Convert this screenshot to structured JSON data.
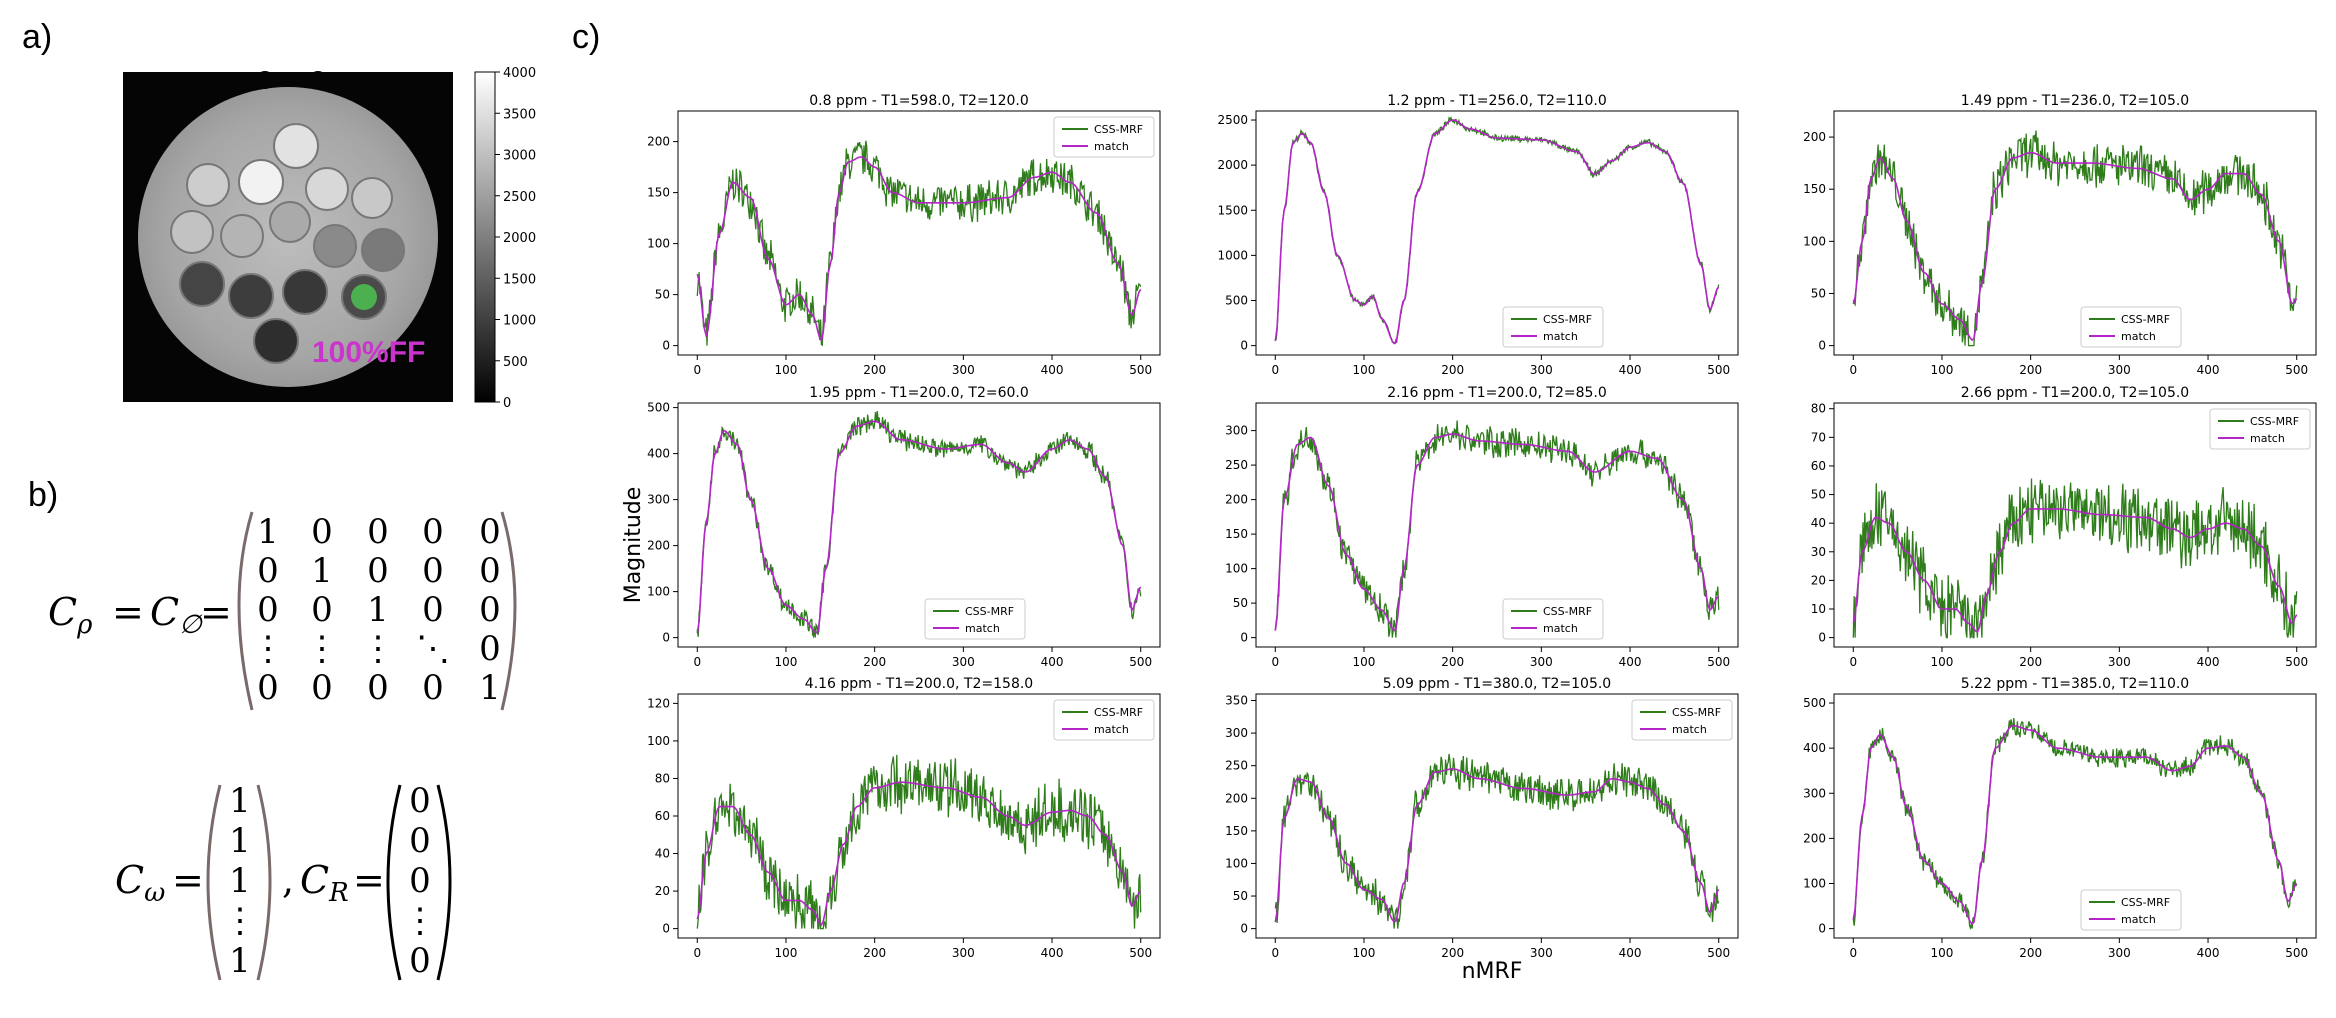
{
  "panels": {
    "a": "a)",
    "b": "b)",
    "c": "c)"
  },
  "phantom": {
    "label": "100%FF",
    "label_color": "#cc33cc",
    "marker_color": "#4caf50",
    "colorbar_ticks": [
      "4000",
      "3500",
      "3000",
      "2500",
      "2000",
      "1500",
      "1000",
      "500",
      "0"
    ]
  },
  "equations": {
    "c_rho": "C",
    "rho_sub": "ρ",
    "equals": "=",
    "c_phi": "C",
    "phi_sub": "∅",
    "identity_rows": [
      [
        "1",
        "0",
        "0",
        "0",
        "0"
      ],
      [
        "0",
        "1",
        "0",
        "0",
        "0"
      ],
      [
        "0",
        "0",
        "1",
        "0",
        "0"
      ],
      [
        "⋮",
        "⋮",
        "⋮",
        "⋱",
        "0"
      ],
      [
        "0",
        "0",
        "0",
        "0",
        "1"
      ]
    ],
    "c_omega": "C",
    "omega_sub": "ω",
    "omega_vec": [
      "1",
      "1",
      "1",
      "⋮",
      "1"
    ],
    "comma": ",",
    "c_r": "C",
    "r_sub": "R",
    "r_vec": [
      "0",
      "0",
      "0",
      "⋮",
      "0"
    ]
  },
  "axes_labels": {
    "ylabel": "Magnitude",
    "xlabel": "nMRF"
  },
  "legend": {
    "series1": "CSS-MRF",
    "series2": "match"
  },
  "colors": {
    "series1": "#2e7d1a",
    "series2": "#b325c6"
  },
  "chart_data": [
    {
      "type": "line",
      "title": "0.8 ppm - T1=598.0, T2=120.0",
      "xlim": [
        0,
        500
      ],
      "ylim": [
        0,
        230
      ],
      "xticks": [
        "0",
        "100",
        "200",
        "300",
        "400",
        "500"
      ],
      "yticks": [
        "0",
        "50",
        "100",
        "150",
        "200"
      ],
      "legend_pos": "top-right",
      "noise": 22,
      "series": [
        {
          "name": "CSS-MRF"
        },
        {
          "name": "match",
          "x": [
            0,
            10,
            25,
            40,
            60,
            80,
            100,
            115,
            130,
            140,
            150,
            160,
            170,
            185,
            200,
            220,
            250,
            300,
            350,
            380,
            400,
            420,
            450,
            475,
            490,
            500
          ],
          "values": [
            70,
            10,
            110,
            160,
            145,
            85,
            40,
            50,
            30,
            5,
            80,
            150,
            180,
            185,
            175,
            150,
            140,
            140,
            145,
            165,
            170,
            160,
            130,
            80,
            30,
            55
          ]
        }
      ]
    },
    {
      "type": "line",
      "title": "1.2 ppm - T1=256.0, T2=110.0",
      "xlim": [
        0,
        500
      ],
      "ylim": [
        0,
        2600
      ],
      "xticks": [
        "0",
        "100",
        "200",
        "300",
        "400",
        "500"
      ],
      "yticks": [
        "0",
        "500",
        "1000",
        "1500",
        "2000",
        "2500"
      ],
      "legend_pos": "bottom-center",
      "noise": 40,
      "series": [
        {
          "name": "CSS-MRF"
        },
        {
          "name": "match",
          "x": [
            0,
            10,
            20,
            30,
            40,
            55,
            70,
            90,
            100,
            110,
            120,
            135,
            145,
            160,
            180,
            200,
            220,
            250,
            300,
            340,
            360,
            380,
            400,
            420,
            440,
            460,
            480,
            490,
            500
          ],
          "values": [
            50,
            1500,
            2250,
            2350,
            2250,
            1700,
            1000,
            500,
            450,
            550,
            300,
            20,
            500,
            1700,
            2350,
            2500,
            2400,
            2300,
            2280,
            2150,
            1900,
            2050,
            2200,
            2250,
            2150,
            1800,
            900,
            400,
            650
          ]
        }
      ]
    },
    {
      "type": "line",
      "title": "1.49 ppm - T1=236.0, T2=105.0",
      "xlim": [
        0,
        500
      ],
      "ylim": [
        0,
        225
      ],
      "xticks": [
        "0",
        "100",
        "200",
        "300",
        "400",
        "500"
      ],
      "yticks": [
        "0",
        "50",
        "100",
        "150",
        "200"
      ],
      "legend_pos": "bottom-center",
      "noise": 25,
      "series": [
        {
          "name": "CSS-MRF"
        },
        {
          "name": "match",
          "x": [
            0,
            10,
            20,
            30,
            45,
            60,
            80,
            100,
            120,
            135,
            145,
            160,
            180,
            200,
            230,
            270,
            320,
            360,
            380,
            400,
            420,
            440,
            460,
            480,
            495,
            500
          ],
          "values": [
            40,
            100,
            160,
            180,
            160,
            120,
            70,
            40,
            25,
            5,
            60,
            150,
            180,
            185,
            175,
            175,
            170,
            160,
            140,
            150,
            165,
            165,
            145,
            100,
            40,
            45
          ]
        }
      ]
    },
    {
      "type": "line",
      "title": "1.95 ppm - T1=200.0, T2=60.0",
      "xlim": [
        0,
        500
      ],
      "ylim": [
        0,
        510
      ],
      "xticks": [
        "0",
        "100",
        "200",
        "300",
        "400",
        "500"
      ],
      "yticks": [
        "0",
        "100",
        "200",
        "300",
        "400",
        "500"
      ],
      "legend_pos": "bottom-center",
      "noise": 25,
      "series": [
        {
          "name": "CSS-MRF"
        },
        {
          "name": "match",
          "x": [
            0,
            10,
            20,
            30,
            45,
            60,
            80,
            100,
            120,
            135,
            145,
            160,
            180,
            200,
            230,
            280,
            320,
            350,
            370,
            400,
            420,
            440,
            460,
            480,
            490,
            500
          ],
          "values": [
            10,
            250,
            400,
            450,
            420,
            300,
            150,
            70,
            40,
            10,
            150,
            400,
            460,
            470,
            430,
            410,
            420,
            380,
            360,
            410,
            430,
            410,
            350,
            200,
            60,
            110
          ]
        }
      ]
    },
    {
      "type": "line",
      "title": "2.16 ppm - T1=200.0, T2=85.0",
      "xlim": [
        0,
        500
      ],
      "ylim": [
        0,
        340
      ],
      "xticks": [
        "0",
        "100",
        "200",
        "300",
        "400",
        "500"
      ],
      "yticks": [
        "0",
        "50",
        "100",
        "150",
        "200",
        "250",
        "300"
      ],
      "legend_pos": "bottom-center",
      "noise": 25,
      "series": [
        {
          "name": "CSS-MRF"
        },
        {
          "name": "match",
          "x": [
            0,
            10,
            25,
            40,
            60,
            80,
            100,
            120,
            135,
            145,
            160,
            180,
            200,
            230,
            280,
            330,
            360,
            400,
            430,
            460,
            480,
            490,
            500
          ],
          "values": [
            10,
            200,
            280,
            290,
            220,
            120,
            70,
            40,
            10,
            100,
            250,
            290,
            295,
            285,
            280,
            270,
            240,
            270,
            260,
            200,
            100,
            40,
            60
          ]
        }
      ]
    },
    {
      "type": "line",
      "title": "2.66 ppm - T1=200.0, T2=105.0",
      "xlim": [
        0,
        500
      ],
      "ylim": [
        0,
        82
      ],
      "xticks": [
        "0",
        "100",
        "200",
        "300",
        "400",
        "500"
      ],
      "yticks": [
        "0",
        "10",
        "20",
        "30",
        "40",
        "50",
        "60",
        "70",
        "80"
      ],
      "legend_pos": "top-right",
      "noise": 14,
      "series": [
        {
          "name": "CSS-MRF"
        },
        {
          "name": "match",
          "x": [
            0,
            10,
            25,
            40,
            60,
            80,
            100,
            115,
            130,
            140,
            150,
            165,
            180,
            200,
            230,
            280,
            330,
            360,
            380,
            400,
            420,
            440,
            460,
            480,
            495,
            500
          ],
          "values": [
            5,
            30,
            42,
            40,
            30,
            20,
            10,
            10,
            5,
            2,
            15,
            30,
            40,
            45,
            45,
            43,
            42,
            38,
            35,
            38,
            40,
            38,
            32,
            18,
            5,
            8
          ]
        }
      ]
    },
    {
      "type": "line",
      "title": "4.16 ppm - T1=200.0, T2=158.0",
      "xlim": [
        0,
        500
      ],
      "ylim": [
        0,
        125
      ],
      "xticks": [
        "0",
        "100",
        "200",
        "300",
        "400",
        "500"
      ],
      "yticks": [
        "0",
        "20",
        "40",
        "60",
        "80",
        "100",
        "120"
      ],
      "legend_pos": "top-right",
      "noise": 18,
      "series": [
        {
          "name": "CSS-MRF"
        },
        {
          "name": "match",
          "x": [
            0,
            10,
            25,
            40,
            60,
            80,
            100,
            115,
            130,
            140,
            150,
            165,
            180,
            200,
            230,
            280,
            320,
            350,
            370,
            400,
            420,
            440,
            460,
            480,
            490,
            500
          ],
          "values": [
            5,
            40,
            65,
            65,
            50,
            30,
            15,
            15,
            10,
            2,
            20,
            45,
            65,
            75,
            78,
            75,
            70,
            60,
            55,
            62,
            63,
            60,
            50,
            30,
            12,
            20
          ]
        }
      ]
    },
    {
      "type": "line",
      "title": "5.09 ppm - T1=380.0, T2=105.0",
      "xlim": [
        0,
        500
      ],
      "ylim": [
        0,
        360
      ],
      "xticks": [
        "0",
        "100",
        "200",
        "300",
        "400",
        "500"
      ],
      "yticks": [
        "0",
        "50",
        "100",
        "150",
        "200",
        "250",
        "300",
        "350"
      ],
      "legend_pos": "top-right",
      "noise": 30,
      "series": [
        {
          "name": "CSS-MRF"
        },
        {
          "name": "match",
          "x": [
            0,
            10,
            25,
            40,
            60,
            80,
            100,
            120,
            135,
            145,
            160,
            180,
            200,
            230,
            280,
            330,
            360,
            380,
            400,
            420,
            440,
            460,
            480,
            490,
            500
          ],
          "values": [
            10,
            170,
            230,
            225,
            170,
            100,
            60,
            45,
            10,
            70,
            190,
            240,
            245,
            230,
            215,
            205,
            210,
            230,
            225,
            215,
            190,
            150,
            70,
            25,
            60
          ]
        }
      ]
    },
    {
      "type": "line",
      "title": "5.22 ppm - T1=385.0, T2=110.0",
      "xlim": [
        0,
        500
      ],
      "ylim": [
        0,
        520
      ],
      "xticks": [
        "0",
        "100",
        "200",
        "300",
        "400",
        "500"
      ],
      "yticks": [
        "0",
        "100",
        "200",
        "300",
        "400",
        "500"
      ],
      "legend_pos": "bottom-center",
      "noise": 25,
      "series": [
        {
          "name": "CSS-MRF"
        },
        {
          "name": "match",
          "x": [
            0,
            10,
            20,
            30,
            45,
            60,
            80,
            100,
            120,
            135,
            145,
            160,
            180,
            200,
            230,
            280,
            330,
            360,
            380,
            400,
            420,
            440,
            460,
            480,
            490,
            500
          ],
          "values": [
            20,
            250,
            400,
            430,
            380,
            270,
            150,
            100,
            60,
            10,
            150,
            400,
            450,
            440,
            400,
            380,
            380,
            350,
            360,
            400,
            405,
            380,
            300,
            150,
            60,
            100
          ]
        }
      ]
    }
  ]
}
